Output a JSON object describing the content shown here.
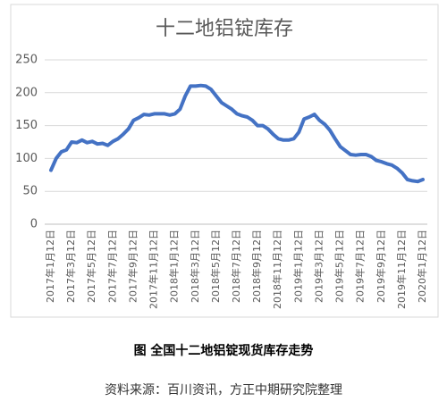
{
  "chart_data": {
    "type": "line",
    "title": "十二地铝锭库存",
    "categories": [
      "2017年1月12日",
      null,
      null,
      null,
      "2017年3月12日",
      null,
      null,
      null,
      "2017年5月12日",
      null,
      null,
      null,
      "2017年7月12日",
      null,
      null,
      null,
      "2017年9月12日",
      null,
      null,
      null,
      "2017年11月12日",
      null,
      null,
      null,
      "2018年1月12日",
      null,
      null,
      null,
      "2018年3月12日",
      null,
      null,
      null,
      "2018年5月12日",
      null,
      null,
      null,
      "2018年7月12日",
      null,
      null,
      null,
      "2018年9月12日",
      null,
      null,
      null,
      "2018年11月12日",
      null,
      null,
      null,
      "2019年1月12日",
      null,
      null,
      null,
      "2019年3月12日",
      null,
      null,
      null,
      "2019年5月12日",
      null,
      null,
      null,
      "2019年7月12日",
      null,
      null,
      null,
      "2019年9月12日",
      null,
      null,
      null,
      "2019年11月12日",
      null,
      null,
      null,
      "2020年1月12日"
    ],
    "values": [
      82,
      100,
      110,
      113,
      125,
      124,
      128,
      124,
      126,
      122,
      123,
      120,
      126,
      130,
      137,
      145,
      158,
      162,
      167,
      166,
      168,
      168,
      168,
      166,
      168,
      175,
      195,
      210,
      210,
      211,
      210,
      205,
      195,
      185,
      180,
      175,
      168,
      165,
      163,
      158,
      150,
      150,
      145,
      137,
      130,
      128,
      128,
      130,
      140,
      160,
      163,
      167,
      158,
      152,
      143,
      130,
      118,
      112,
      106,
      105,
      106,
      106,
      103,
      97,
      95,
      92,
      90,
      85,
      78,
      68,
      66,
      65,
      68
    ],
    "color": "#4472c4",
    "ylim": [
      0,
      250
    ],
    "yticks": [
      0,
      50,
      100,
      150,
      200,
      250
    ],
    "grid": true
  },
  "caption": "图  全国十二地铝锭现货库存走势",
  "source": "资料来源：百川资讯，方正中期研究院整理"
}
